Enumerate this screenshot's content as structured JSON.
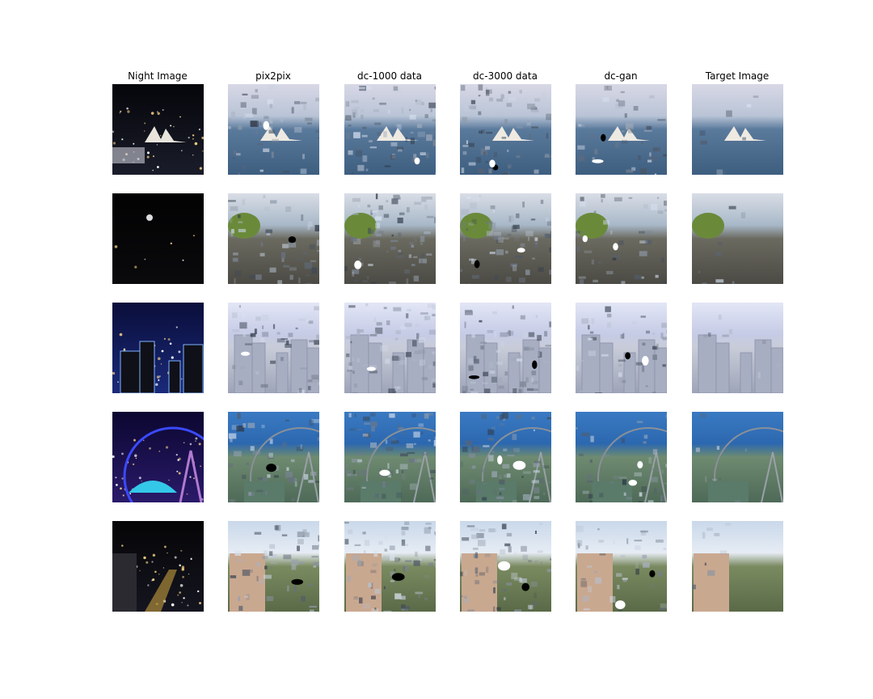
{
  "figure": {
    "columns": [
      "Night Image",
      "pix2pix",
      "dc-1000 data",
      "dc-3000 data",
      "dc-gan",
      "Target Image"
    ],
    "rows": [
      {
        "scene": "harbour-opera-house",
        "night": [
          "#05060a",
          "#0b0d14",
          "#1a1c2a"
        ],
        "day_sky": [
          "#d8d8e6",
          "#b9c4d6"
        ],
        "day_ground": [
          "#3e5e80",
          "#5a7a9c"
        ]
      },
      {
        "scene": "road-with-trees",
        "night": [
          "#020203",
          "#050507",
          "#0a0a0c"
        ],
        "day_sky": [
          "#d9dde6",
          "#a8b8c8"
        ],
        "day_ground": [
          "#4b4a44",
          "#6b6a60"
        ]
      },
      {
        "scene": "city-towers",
        "night": [
          "#0a0e3a",
          "#102060",
          "#1a2a7a"
        ],
        "day_sky": [
          "#e2e6f6",
          "#c6cbe6"
        ],
        "day_ground": [
          "#9ea4b8",
          "#c8ccd8"
        ]
      },
      {
        "scene": "ferris-wheel",
        "night": [
          "#0b0730",
          "#1c0e52",
          "#2a1a6a"
        ],
        "day_sky": [
          "#3a7ac2",
          "#2c68b0"
        ],
        "day_ground": [
          "#4e6a58",
          "#6e8a70"
        ]
      },
      {
        "scene": "city-aerial",
        "night": [
          "#050507",
          "#0a0a0e",
          "#151520"
        ],
        "day_sky": [
          "#c9d8ea",
          "#e6ecf4"
        ],
        "day_ground": [
          "#5a6a48",
          "#7a8a60"
        ]
      }
    ]
  }
}
